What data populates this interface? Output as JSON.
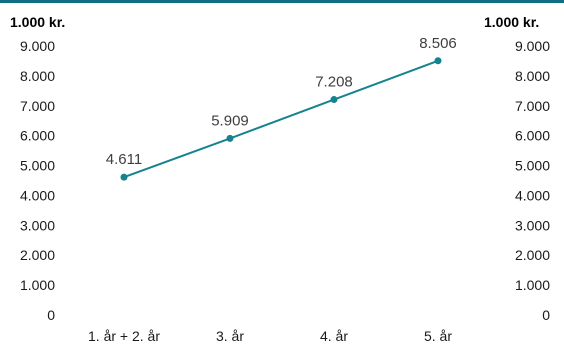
{
  "chart_data": {
    "type": "line",
    "unit_left": "1.000 kr.",
    "unit_right": "1.000 kr.",
    "categories": [
      "1. år + 2. år",
      "3. år",
      "4. år",
      "5. år"
    ],
    "values": [
      4611,
      5909,
      7208,
      8506
    ],
    "value_labels": [
      "4.611",
      "5.909",
      "7.208",
      "8.506"
    ],
    "ylim": [
      0,
      9000
    ],
    "yticks": [
      0,
      1000,
      2000,
      3000,
      4000,
      5000,
      6000,
      7000,
      8000,
      9000
    ],
    "ytick_labels": [
      "0",
      "1.000",
      "2.000",
      "3.000",
      "4.000",
      "5.000",
      "6.000",
      "7.000",
      "8.000",
      "9.000"
    ],
    "grid": false,
    "line_color": "#14838f",
    "top_border_color": "#0e6f82"
  }
}
